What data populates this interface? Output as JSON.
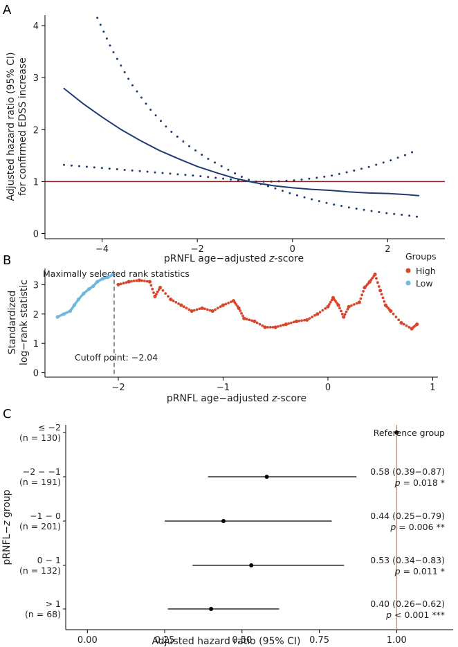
{
  "panels": {
    "a": "A",
    "b": "B",
    "c": "C"
  },
  "chart_data": [
    {
      "type": "line",
      "panel": "A",
      "xlabel": "pRNFL age−adjusted z‑score",
      "xlabel_parts": {
        "pre": "pRNFL age−adjusted ",
        "italic": "z",
        "post": "-score"
      },
      "ylabel_lines": [
        "Adjusted hazard ratio (95% CI)",
        "for confirmed EDSS increase"
      ],
      "xlim": [
        -5.2,
        3.2
      ],
      "ylim": [
        -0.1,
        4.2
      ],
      "xticks": [
        -4,
        -2,
        0,
        2
      ],
      "xtick_labels": [
        "−4",
        "−2",
        "0",
        "2"
      ],
      "yticks": [
        0,
        1,
        2,
        3,
        4
      ],
      "ytick_labels": [
        "0",
        "1",
        "2",
        "3",
        "4"
      ],
      "reference_line": 1,
      "colors": {
        "curve": "#1f3b73",
        "reference": "#8b1e1e"
      },
      "series": [
        {
          "name": "Hazard ratio",
          "style": "solid",
          "x": [
            -4.8,
            -4.4,
            -4.0,
            -3.6,
            -3.2,
            -2.8,
            -2.4,
            -2.0,
            -1.6,
            -1.2,
            -0.8,
            -0.4,
            0.0,
            0.4,
            0.8,
            1.2,
            1.6,
            2.0,
            2.4,
            2.65
          ],
          "y": [
            2.79,
            2.5,
            2.24,
            2.0,
            1.79,
            1.6,
            1.44,
            1.29,
            1.17,
            1.06,
            0.98,
            0.92,
            0.88,
            0.85,
            0.83,
            0.8,
            0.78,
            0.77,
            0.75,
            0.73
          ]
        },
        {
          "name": "Upper 95% CI",
          "style": "dotted",
          "x": [
            -4.1,
            -3.8,
            -3.4,
            -3.0,
            -2.6,
            -2.2,
            -1.8,
            -1.4,
            -1.0,
            -0.8,
            -0.4,
            0.0,
            0.4,
            0.8,
            1.2,
            1.6,
            2.0,
            2.4,
            2.6
          ],
          "y": [
            4.15,
            3.55,
            2.9,
            2.4,
            2.0,
            1.7,
            1.45,
            1.25,
            1.06,
            1.0,
            1.0,
            1.02,
            1.06,
            1.11,
            1.19,
            1.28,
            1.39,
            1.52,
            1.6
          ]
        },
        {
          "name": "Lower 95% CI",
          "style": "dotted",
          "x": [
            -4.8,
            -4.4,
            -4.0,
            -3.6,
            -3.2,
            -2.8,
            -2.4,
            -2.0,
            -1.6,
            -1.2,
            -0.8,
            -0.4,
            0.0,
            0.4,
            0.8,
            1.2,
            1.6,
            2.0,
            2.4,
            2.65
          ],
          "y": [
            1.32,
            1.29,
            1.26,
            1.23,
            1.2,
            1.17,
            1.14,
            1.11,
            1.07,
            1.03,
            0.99,
            0.88,
            0.76,
            0.66,
            0.57,
            0.5,
            0.44,
            0.39,
            0.35,
            0.32
          ]
        }
      ]
    },
    {
      "type": "scatter",
      "panel": "B",
      "title": "Maximally selected rank statistics",
      "xlabel_parts": {
        "pre": "pRNFL age−adjusted ",
        "italic": "z",
        "post": "-score"
      },
      "ylabel_lines": [
        "Standardized",
        "log−rank statistic"
      ],
      "xlim": [
        -2.7,
        1.05
      ],
      "ylim": [
        -0.15,
        3.55
      ],
      "xticks": [
        -2,
        -1,
        0,
        1
      ],
      "xtick_labels": [
        "−2",
        "−1",
        "0",
        "1"
      ],
      "yticks": [
        0,
        1,
        2,
        3
      ],
      "ytick_labels": [
        "0",
        "1",
        "2",
        "3"
      ],
      "cutoff": -2.04,
      "cutoff_label": "Cutoff point: −2.04",
      "legend": {
        "title": "Groups",
        "entries": [
          {
            "name": "High",
            "color": "#d7462a"
          },
          {
            "name": "Low",
            "color": "#6fb8dc"
          }
        ],
        "position": "top-right"
      },
      "series": [
        {
          "name": "Low",
          "color": "#6fb8dc",
          "x": [
            -2.58,
            -2.52,
            -2.46,
            -2.42,
            -2.38,
            -2.33,
            -2.28,
            -2.24,
            -2.2,
            -2.15,
            -2.1,
            -2.05
          ],
          "y": [
            1.9,
            2.0,
            2.1,
            2.3,
            2.5,
            2.7,
            2.85,
            2.95,
            3.1,
            3.2,
            3.25,
            3.35
          ]
        },
        {
          "name": "High",
          "color": "#d7462a",
          "x": [
            -2.0,
            -1.9,
            -1.8,
            -1.7,
            -1.65,
            -1.6,
            -1.5,
            -1.4,
            -1.3,
            -1.2,
            -1.1,
            -1.0,
            -0.9,
            -0.85,
            -0.8,
            -0.7,
            -0.6,
            -0.5,
            -0.4,
            -0.3,
            -0.2,
            -0.1,
            0.0,
            0.05,
            0.1,
            0.15,
            0.2,
            0.3,
            0.35,
            0.4,
            0.45,
            0.5,
            0.55,
            0.6,
            0.7,
            0.8,
            0.85
          ],
          "y": [
            3.0,
            3.1,
            3.15,
            3.1,
            2.6,
            2.9,
            2.5,
            2.3,
            2.1,
            2.2,
            2.1,
            2.3,
            2.45,
            2.2,
            1.85,
            1.75,
            1.55,
            1.55,
            1.65,
            1.75,
            1.8,
            2.0,
            2.25,
            2.55,
            2.3,
            1.9,
            2.25,
            2.4,
            2.9,
            3.1,
            3.35,
            2.8,
            2.3,
            2.1,
            1.7,
            1.5,
            1.65
          ]
        }
      ]
    },
    {
      "type": "forest",
      "panel": "C",
      "xlabel": "Adjusted hazard ratio (95% CI)",
      "ylabel_parts": {
        "pre": "pRNFL−",
        "italic": "z",
        "post": " group"
      },
      "xlim": [
        -0.07,
        1.12
      ],
      "xticks": [
        0.0,
        0.25,
        0.5,
        0.75,
        1.0
      ],
      "xtick_labels": [
        "0.00",
        "0.25",
        "0.50",
        "0.75",
        "1.00"
      ],
      "reference_line": 1.0,
      "colors": {
        "reference": "#e8875e",
        "interval": "#000000"
      },
      "rows": [
        {
          "group": "≤ −2",
          "n": "(n = 130)",
          "hr": 1.0,
          "lo": null,
          "hi": null,
          "label": "Reference group",
          "p_prefix": "",
          "p_value": "",
          "stars": ""
        },
        {
          "group": "−2 − −1",
          "n": "(n = 191)",
          "hr": 0.58,
          "lo": 0.39,
          "hi": 0.87,
          "label": "0.58 (0.39−0.87)",
          "p_prefix": "p",
          "p_value": " = 0.018 ",
          "stars": "*"
        },
        {
          "group": "−1 − 0",
          "n": "(n = 201)",
          "hr": 0.44,
          "lo": 0.25,
          "hi": 0.79,
          "label": "0.44 (0.25−0.79)",
          "p_prefix": "p",
          "p_value": " = 0.006 ",
          "stars": "**"
        },
        {
          "group": "0 − 1",
          "n": "(n = 132)",
          "hr": 0.53,
          "lo": 0.34,
          "hi": 0.83,
          "label": "0.53 (0.34−0.83)",
          "p_prefix": "p",
          "p_value": " = 0.011 ",
          "stars": "*"
        },
        {
          "group": "> 1",
          "n": "(n = 68)",
          "hr": 0.4,
          "lo": 0.26,
          "hi": 0.62,
          "label": "0.40 (0.26−0.62)",
          "p_prefix": "p",
          "p_value": " < 0.001 ",
          "stars": "***"
        }
      ]
    }
  ]
}
